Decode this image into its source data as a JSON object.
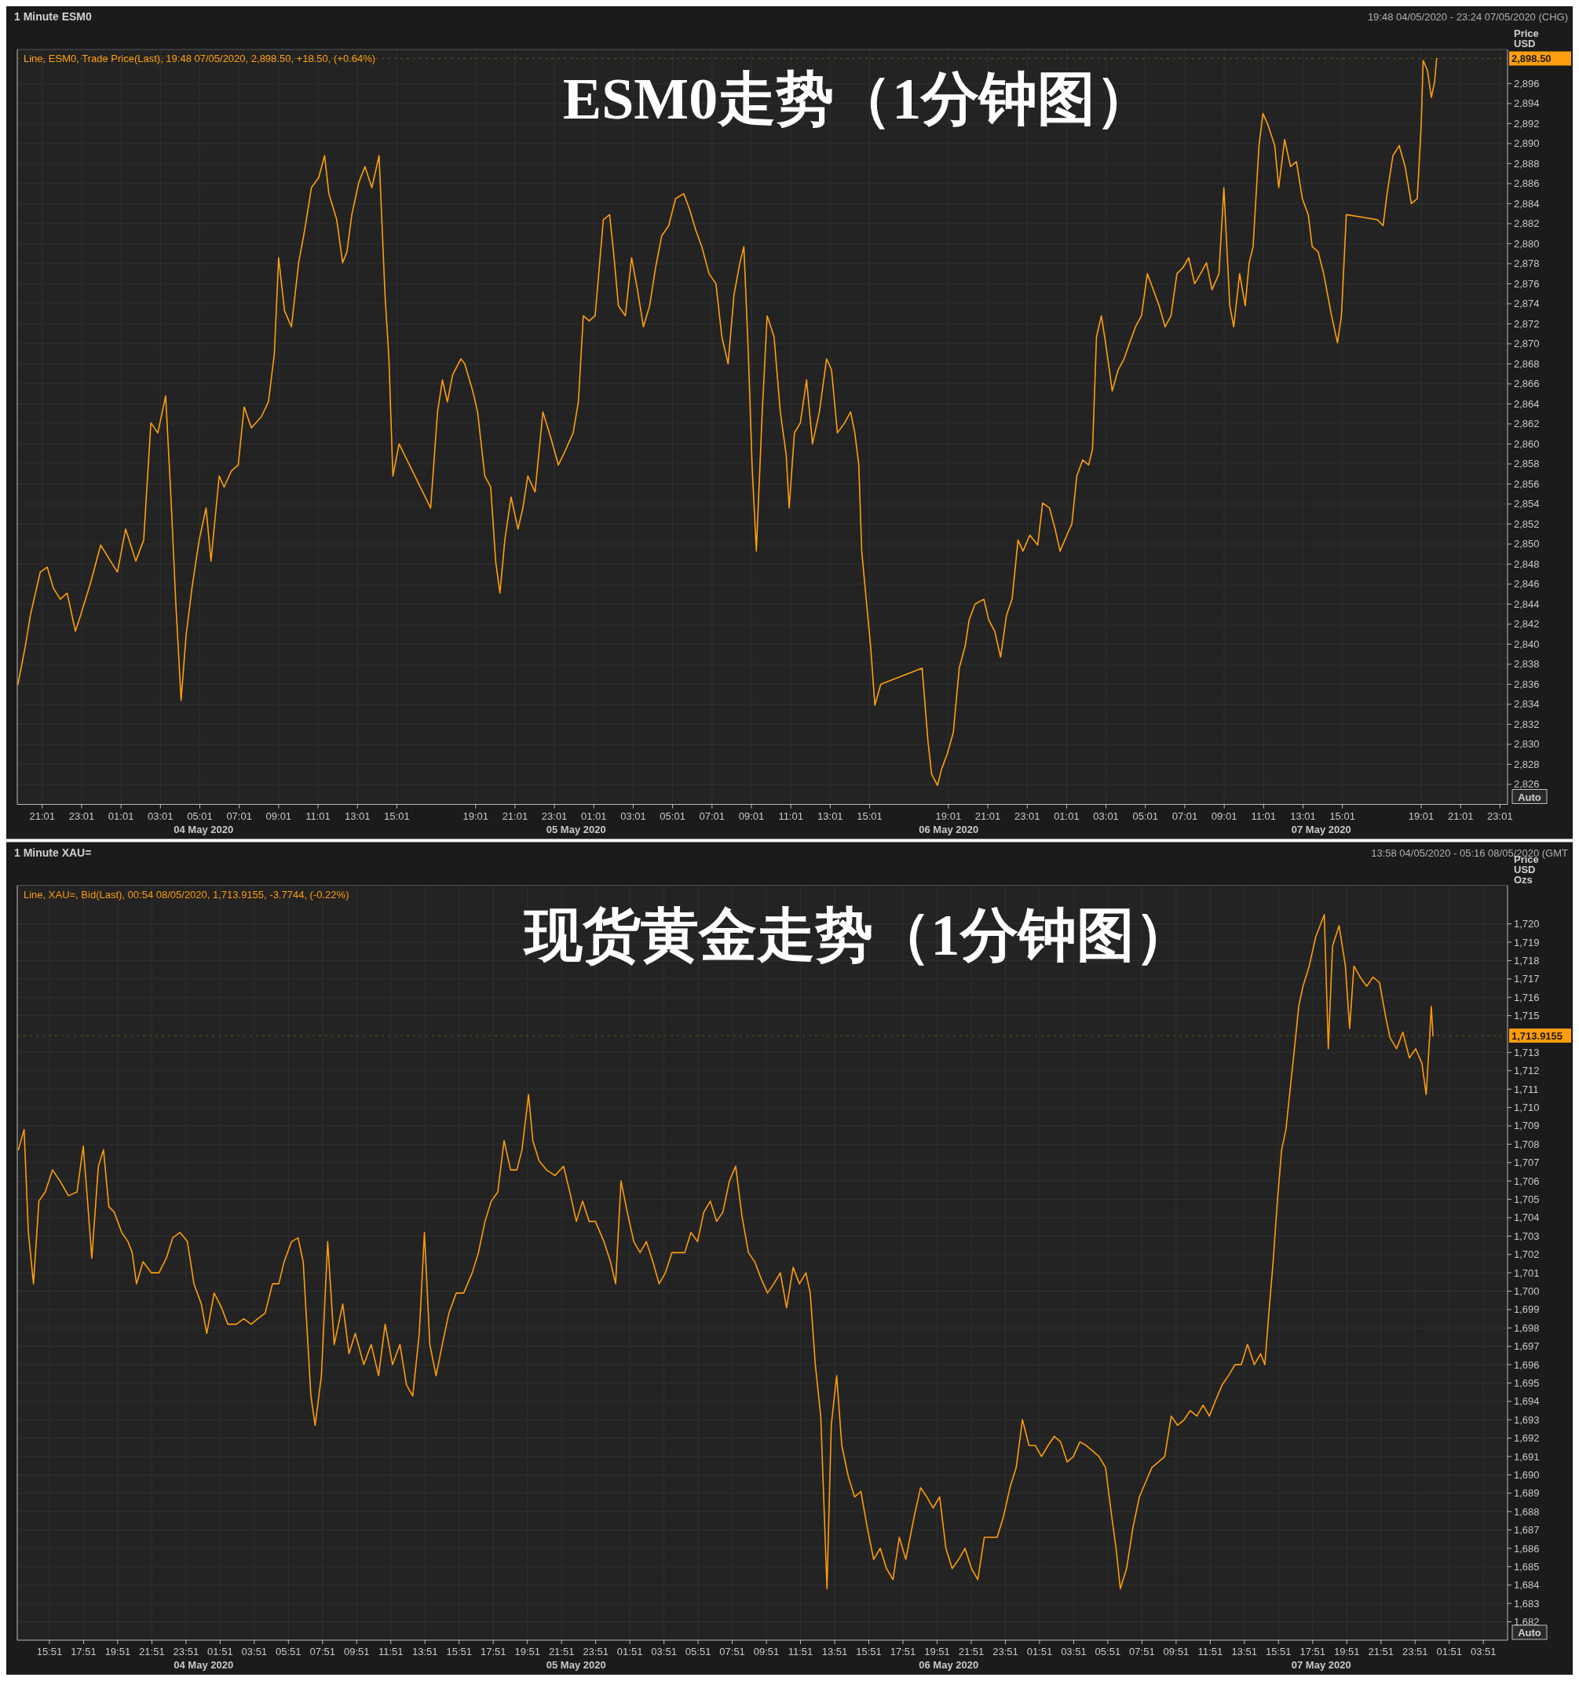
{
  "chart_data": [
    {
      "type": "line",
      "title": "ESM0走势（1分钟图）",
      "subtitle": "1 Minute ESM0",
      "ylabel": "Price USD",
      "annotations": [
        "Line, ESM0, Trade Price(Last), 19:48 07/05/2020, 2,898.50, +18.50, (+0.64%)",
        "19:48 04/05/2020 - 23:24 07/05/2020 (CHG)",
        "Auto",
        "04 May 2020",
        "05 May 2020",
        "06 May 2020",
        "07 May 2020"
      ],
      "series": [
        {
          "color": "#ff9f0f",
          "x": [
            "2020-05-04T19:47",
            "2020-05-04T20:09",
            "2020-05-04T20:25",
            "2020-05-04T20:55",
            "2020-05-04T21:16",
            "2020-05-04T21:35",
            "2020-05-04T21:56",
            "2020-05-04T22:17",
            "2020-05-04T22:42",
            "2020-05-04T22:58",
            "2020-05-04T23:28",
            "2020-05-04T23:59",
            "2020-05-05T00:29",
            "2020-05-05T00:50",
            "2020-05-05T01:15",
            "2020-05-05T01:46",
            "2020-05-05T02:10",
            "2020-05-05T02:32",
            "2020-05-05T02:53",
            "2020-05-05T03:17",
            "2020-05-05T03:33",
            "2020-05-05T03:48",
            "2020-05-05T04:04",
            "2020-05-05T04:19",
            "2020-05-05T04:37",
            "2020-05-05T04:59",
            "2020-05-05T05:20",
            "2020-05-05T05:35",
            "2020-05-05T06:00",
            "2020-05-05T06:15",
            "2020-05-05T06:37",
            "2020-05-05T06:58",
            "2020-05-05T07:16",
            "2020-05-05T07:38",
            "2020-05-05T08:08",
            "2020-05-05T08:30",
            "2020-05-05T08:48",
            "2020-05-05T09:01",
            "2020-05-05T09:19",
            "2020-05-05T09:40",
            "2020-05-05T10:02",
            "2020-05-05T10:20",
            "2020-05-05T10:41",
            "2020-05-05T11:03",
            "2020-05-05T11:21",
            "2020-05-05T11:34",
            "2020-05-05T11:58",
            "2020-05-05T12:16",
            "2020-05-05T12:29",
            "2020-05-05T12:44",
            "2020-05-05T13:05",
            "2020-05-05T13:24",
            "2020-05-05T13:45",
            "2020-05-05T14:07",
            "2020-05-05T14:25",
            "2020-05-05T14:37",
            "2020-05-05T14:49",
            "2020-05-05T15:08",
            "2020-05-05T16:44",
            "2020-05-05T17:05",
            "2020-05-05T17:20",
            "2020-05-05T17:35",
            "2020-05-05T17:51",
            "2020-05-05T18:16",
            "2020-05-05T18:28",
            "2020-05-05T18:52",
            "2020-05-05T19:07",
            "2020-05-05T19:29",
            "2020-05-05T19:47",
            "2020-05-05T20:02",
            "2020-05-05T20:15",
            "2020-05-05T20:30",
            "2020-05-05T20:49",
            "2020-05-05T21:10",
            "2020-05-05T21:25",
            "2020-05-05T21:40",
            "2020-05-05T22:02",
            "2020-05-05T22:26",
            "2020-05-05T22:51",
            "2020-05-05T23:13",
            "2020-05-05T23:28",
            "2020-05-05T23:58",
            "2020-05-06T00:14",
            "2020-05-06T00:29",
            "2020-05-06T00:47",
            "2020-05-06T01:05",
            "2020-05-06T01:30",
            "2020-05-06T01:49",
            "2020-05-06T02:01",
            "2020-05-06T02:16",
            "2020-05-06T02:37",
            "2020-05-06T02:56",
            "2020-05-06T03:14",
            "2020-05-06T03:32",
            "2020-05-06T03:51",
            "2020-05-06T04:09",
            "2020-05-06T04:28",
            "2020-05-06T04:49",
            "2020-05-06T05:10",
            "2020-05-06T05:35",
            "2020-05-06T05:53",
            "2020-05-06T06:12",
            "2020-05-06T06:30",
            "2020-05-06T06:52",
            "2020-05-06T07:13",
            "2020-05-06T07:31",
            "2020-05-06T07:50",
            "2020-05-06T08:08",
            "2020-05-06T08:26",
            "2020-05-06T08:38",
            "2020-05-06T08:51",
            "2020-05-06T09:03",
            "2020-05-06T09:16",
            "2020-05-06T09:34",
            "2020-05-06T09:49",
            "2020-05-06T10:10",
            "2020-05-06T10:29",
            "2020-05-06T10:47",
            "2020-05-06T10:56",
            "2020-05-06T11:12",
            "2020-05-06T11:30",
            "2020-05-06T11:49",
            "2020-05-06T12:07",
            "2020-05-06T12:28",
            "2020-05-06T12:50",
            "2020-05-06T13:05",
            "2020-05-06T13:23",
            "2020-05-06T13:45",
            "2020-05-06T14:03",
            "2020-05-06T14:16",
            "2020-05-06T14:28",
            "2020-05-06T14:37",
            "2020-05-06T14:52",
            "2020-05-06T15:04",
            "2020-05-06T15:17",
            "2020-05-06T15:35",
            "2020-05-06T17:41",
            "2020-05-06T17:59",
            "2020-05-06T18:10",
            "2020-05-06T18:28",
            "2020-05-06T18:40",
            "2020-05-06T18:58",
            "2020-05-06T19:16",
            "2020-05-06T19:34",
            "2020-05-06T19:52",
            "2020-05-06T20:04",
            "2020-05-06T20:22",
            "2020-05-06T20:49",
            "2020-05-06T21:04",
            "2020-05-06T21:22",
            "2020-05-06T21:40",
            "2020-05-06T21:58",
            "2020-05-06T22:15",
            "2020-05-06T22:33",
            "2020-05-06T22:48",
            "2020-05-06T23:09",
            "2020-05-06T23:33",
            "2020-05-06T23:48",
            "2020-05-07T00:09",
            "2020-05-07T00:26",
            "2020-05-07T00:41",
            "2020-05-07T01:02",
            "2020-05-07T01:17",
            "2020-05-07T01:32",
            "2020-05-07T01:50",
            "2020-05-07T02:08",
            "2020-05-07T02:20",
            "2020-05-07T02:32",
            "2020-05-07T02:47",
            "2020-05-07T03:02",
            "2020-05-07T03:20",
            "2020-05-07T03:38",
            "2020-05-07T03:56",
            "2020-05-07T04:13",
            "2020-05-07T04:31",
            "2020-05-07T04:49",
            "2020-05-07T05:07",
            "2020-05-07T05:25",
            "2020-05-07T05:43",
            "2020-05-07T06:01",
            "2020-05-07T06:19",
            "2020-05-07T06:37",
            "2020-05-07T06:55",
            "2020-05-07T07:13",
            "2020-05-07T07:31",
            "2020-05-07T07:49",
            "2020-05-07T08:07",
            "2020-05-07T08:24",
            "2020-05-07T08:45",
            "2020-05-07T09:00",
            "2020-05-07T09:18",
            "2020-05-07T09:30",
            "2020-05-07T09:48",
            "2020-05-07T10:05",
            "2020-05-07T10:17",
            "2020-05-07T10:29",
            "2020-05-07T10:47",
            "2020-05-07T10:59",
            "2020-05-07T11:14",
            "2020-05-07T11:35",
            "2020-05-07T11:47",
            "2020-05-07T12:05",
            "2020-05-07T12:23",
            "2020-05-07T12:41",
            "2020-05-07T12:59",
            "2020-05-07T13:17",
            "2020-05-07T13:29",
            "2020-05-07T13:47",
            "2020-05-07T14:04",
            "2020-05-07T14:16",
            "2020-05-07T14:28",
            "2020-05-07T14:46",
            "2020-05-07T14:58",
            "2020-05-07T15:13",
            "2020-05-07T16:47",
            "2020-05-07T17:05",
            "2020-05-07T17:17",
            "2020-05-07T17:35",
            "2020-05-07T17:54",
            "2020-05-07T18:12",
            "2020-05-07T18:31",
            "2020-05-07T18:49",
            "2020-05-07T19:01",
            "2020-05-07T19:07",
            "2020-05-07T19:20",
            "2020-05-07T19:32",
            "2020-05-07T19:42",
            "2020-05-07T19:48"
          ],
          "values": [
            2836.0,
            2839.7,
            2842.9,
            2847.2,
            2847.7,
            2845.6,
            2844.5,
            2845.1,
            2841.3,
            2842.9,
            2846.1,
            2849.9,
            2848.3,
            2847.2,
            2851.5,
            2848.3,
            2850.4,
            2862.1,
            2861.1,
            2864.8,
            2854.7,
            2844.0,
            2834.4,
            2840.8,
            2845.6,
            2850.4,
            2853.6,
            2848.3,
            2856.8,
            2855.7,
            2857.3,
            2857.9,
            2863.7,
            2861.6,
            2862.7,
            2864.2,
            2869.0,
            2878.6,
            2873.3,
            2871.7,
            2878.1,
            2881.3,
            2885.6,
            2886.6,
            2888.8,
            2885.0,
            2882.4,
            2878.1,
            2879.2,
            2882.9,
            2886.1,
            2887.7,
            2885.6,
            2888.8,
            2874.9,
            2868.5,
            2856.8,
            2860.0,
            2853.6,
            2863.2,
            2866.4,
            2864.2,
            2866.9,
            2868.5,
            2868.0,
            2865.3,
            2863.2,
            2856.8,
            2855.7,
            2848.3,
            2845.1,
            2850.4,
            2854.7,
            2851.5,
            2853.6,
            2856.8,
            2855.2,
            2863.2,
            2860.5,
            2857.9,
            2858.9,
            2861.1,
            2864.2,
            2872.8,
            2872.3,
            2872.8,
            2882.4,
            2882.9,
            2879.2,
            2873.8,
            2872.8,
            2878.6,
            2875.4,
            2871.7,
            2873.8,
            2877.6,
            2880.8,
            2881.8,
            2884.5,
            2885.0,
            2883.4,
            2881.3,
            2879.7,
            2877.0,
            2876.0,
            2870.7,
            2868.0,
            2874.9,
            2878.1,
            2879.7,
            2869.6,
            2857.9,
            2849.3,
            2863.2,
            2872.8,
            2870.7,
            2863.2,
            2858.9,
            2853.6,
            2861.1,
            2862.1,
            2866.4,
            2860.0,
            2863.2,
            2868.5,
            2867.4,
            2861.1,
            2862.1,
            2863.2,
            2861.1,
            2857.9,
            2849.3,
            2844.0,
            2839.8,
            2833.9,
            2836.0,
            2837.6,
            2830.2,
            2827.0,
            2825.9,
            2827.5,
            2829.1,
            2831.2,
            2837.6,
            2839.8,
            2842.4,
            2844.0,
            2844.5,
            2842.4,
            2841.3,
            2838.7,
            2842.9,
            2844.5,
            2850.4,
            2849.3,
            2850.9,
            2849.9,
            2854.1,
            2853.6,
            2851.5,
            2849.3,
            2850.9,
            2852.0,
            2856.8,
            2858.4,
            2857.9,
            2859.5,
            2870.7,
            2872.8,
            2869.6,
            2865.3,
            2867.4,
            2868.5,
            2870.1,
            2871.7,
            2872.8,
            2877.0,
            2875.4,
            2873.8,
            2871.7,
            2872.8,
            2877.0,
            2877.6,
            2878.6,
            2876.0,
            2877.0,
            2878.1,
            2875.4,
            2877.0,
            2885.6,
            2873.8,
            2871.7,
            2877.0,
            2873.8,
            2878.1,
            2879.7,
            2889.8,
            2893.0,
            2891.9,
            2889.8,
            2885.6,
            2890.4,
            2887.7,
            2888.2,
            2884.5,
            2882.9,
            2879.7,
            2879.2,
            2877.0,
            2874.9,
            2872.8,
            2870.1,
            2872.8,
            2882.9,
            2882.4,
            2881.8,
            2885.0,
            2888.8,
            2889.8,
            2887.7,
            2884.0,
            2884.5,
            2891.9,
            2898.3,
            2897.3,
            2894.6,
            2896.2,
            2898.5
          ]
        }
      ],
      "xlim": [
        "2020-05-04T19:45",
        "2020-05-07T23:24"
      ],
      "ylim": [
        2824,
        2899.4
      ],
      "xticks": [
        {
          "value": "2020-05-04T21:01",
          "label": "21:01"
        },
        {
          "value": "2020-05-04T23:01",
          "label": "23:01"
        },
        {
          "value": "2020-05-05T01:01",
          "label": "01:01"
        },
        {
          "value": "2020-05-05T03:01",
          "label": "03:01"
        },
        {
          "value": "2020-05-05T05:01",
          "label": "05:01"
        },
        {
          "value": "2020-05-05T07:01",
          "label": "07:01"
        },
        {
          "value": "2020-05-05T09:01",
          "label": "09:01"
        },
        {
          "value": "2020-05-05T11:01",
          "label": "11:01"
        },
        {
          "value": "2020-05-05T13:01",
          "label": "13:01"
        },
        {
          "value": "2020-05-05T15:01",
          "label": "15:01"
        },
        {
          "value": "2020-05-05T19:01",
          "label": "19:01"
        },
        {
          "value": "2020-05-05T21:01",
          "label": "21:01"
        },
        {
          "value": "2020-05-05T23:01",
          "label": "23:01"
        },
        {
          "value": "2020-05-06T01:01",
          "label": "01:01"
        },
        {
          "value": "2020-05-06T03:01",
          "label": "03:01"
        },
        {
          "value": "2020-05-06T05:01",
          "label": "05:01"
        },
        {
          "value": "2020-05-06T07:01",
          "label": "07:01"
        },
        {
          "value": "2020-05-06T09:01",
          "label": "09:01"
        },
        {
          "value": "2020-05-06T11:01",
          "label": "11:01"
        },
        {
          "value": "2020-05-06T13:01",
          "label": "13:01"
        },
        {
          "value": "2020-05-06T15:01",
          "label": "15:01"
        },
        {
          "value": "2020-05-06T19:01",
          "label": "19:01"
        },
        {
          "value": "2020-05-06T21:01",
          "label": "21:01"
        },
        {
          "value": "2020-05-06T23:01",
          "label": "23:01"
        },
        {
          "value": "2020-05-07T01:01",
          "label": "01:01"
        },
        {
          "value": "2020-05-07T03:01",
          "label": "03:01"
        },
        {
          "value": "2020-05-07T05:01",
          "label": "05:01"
        },
        {
          "value": "2020-05-07T07:01",
          "label": "07:01"
        },
        {
          "value": "2020-05-07T09:01",
          "label": "09:01"
        },
        {
          "value": "2020-05-07T11:01",
          "label": "11:01"
        },
        {
          "value": "2020-05-07T13:01",
          "label": "13:01"
        },
        {
          "value": "2020-05-07T15:01",
          "label": "15:01"
        },
        {
          "value": "2020-05-07T19:01",
          "label": "19:01"
        },
        {
          "value": "2020-05-07T21:01",
          "label": "21:01"
        },
        {
          "value": "2020-05-07T23:01",
          "label": "23:01"
        }
      ],
      "yticks": [
        {
          "value": 2826,
          "label": "2,826"
        },
        {
          "value": 2828,
          "label": "2,828"
        },
        {
          "value": 2830,
          "label": "2,830"
        },
        {
          "value": 2832,
          "label": "2,832"
        },
        {
          "value": 2834,
          "label": "2,834"
        },
        {
          "value": 2836,
          "label": "2,836"
        },
        {
          "value": 2838,
          "label": "2,838"
        },
        {
          "value": 2840,
          "label": "2,840"
        },
        {
          "value": 2842,
          "label": "2,842"
        },
        {
          "value": 2844,
          "label": "2,844"
        },
        {
          "value": 2846,
          "label": "2,846"
        },
        {
          "value": 2848,
          "label": "2,848"
        },
        {
          "value": 2850,
          "label": "2,850"
        },
        {
          "value": 2852,
          "label": "2,852"
        },
        {
          "value": 2854,
          "label": "2,854"
        },
        {
          "value": 2856,
          "label": "2,856"
        },
        {
          "value": 2858,
          "label": "2,858"
        },
        {
          "value": 2860,
          "label": "2,860"
        },
        {
          "value": 2862,
          "label": "2,862"
        },
        {
          "value": 2864,
          "label": "2,864"
        },
        {
          "value": 2866,
          "label": "2,866"
        },
        {
          "value": 2868,
          "label": "2,868"
        },
        {
          "value": 2870,
          "label": "2,870"
        },
        {
          "value": 2872,
          "label": "2,872"
        },
        {
          "value": 2874,
          "label": "2,874"
        },
        {
          "value": 2876,
          "label": "2,876"
        },
        {
          "value": 2878,
          "label": "2,878"
        },
        {
          "value": 2880,
          "label": "2,880"
        },
        {
          "value": 2882,
          "label": "2,882"
        },
        {
          "value": 2884,
          "label": "2,884"
        },
        {
          "value": 2886,
          "label": "2,886"
        },
        {
          "value": 2888,
          "label": "2,888"
        },
        {
          "value": 2890,
          "label": "2,890"
        },
        {
          "value": 2892,
          "label": "2,892"
        },
        {
          "value": 2894,
          "label": "2,894"
        },
        {
          "value": 2896,
          "label": "2,896"
        }
      ],
      "grid": true,
      "ref_lines": [
        {
          "axis": "y",
          "value": 2898.5,
          "label": "2,898.50",
          "color": "#ff9f0f"
        }
      ]
    },
    {
      "type": "line",
      "title": "现货黄金走势（1分钟图）",
      "subtitle": "1 Minute XAU=",
      "ylabel": "Price USD Ozs",
      "annotations": [
        "Line, XAU=, Bid(Last), 00:54 08/05/2020, 1,713.9155, -3.7744, (-0.22%)",
        "13:58 04/05/2020 - 05:16 08/05/2020 (GMT",
        "Auto",
        "04 May 2020",
        "05 May 2020",
        "06 May 2020",
        "07 May 2020"
      ],
      "series": [
        {
          "color": "#ff9c0c",
          "x": [
            "2020-05-04T14:02",
            "2020-05-04T14:22",
            "2020-05-04T14:37",
            "2020-05-04T14:55",
            "2020-05-04T15:14",
            "2020-05-04T15:36",
            "2020-05-04T16:02",
            "2020-05-04T16:28",
            "2020-05-04T16:58",
            "2020-05-04T17:28",
            "2020-05-04T17:50",
            "2020-05-04T18:05",
            "2020-05-04T18:20",
            "2020-05-04T18:43",
            "2020-05-04T19:01",
            "2020-05-04T19:20",
            "2020-05-04T19:39",
            "2020-05-04T20:05",
            "2020-05-04T20:27",
            "2020-05-04T20:42",
            "2020-05-04T20:57",
            "2020-05-04T21:20",
            "2020-05-04T21:49",
            "2020-05-04T22:16",
            "2020-05-04T22:42",
            "2020-05-04T23:04",
            "2020-05-04T23:30",
            "2020-05-04T23:56",
            "2020-05-05T00:19",
            "2020-05-05T00:45",
            "2020-05-05T01:04",
            "2020-05-05T01:30",
            "2020-05-05T01:56",
            "2020-05-05T02:18",
            "2020-05-05T02:48",
            "2020-05-05T03:14",
            "2020-05-05T03:40",
            "2020-05-05T04:03",
            "2020-05-05T04:29",
            "2020-05-05T04:55",
            "2020-05-05T05:17",
            "2020-05-05T05:36",
            "2020-05-05T06:02",
            "2020-05-05T06:25",
            "2020-05-05T06:43",
            "2020-05-05T07:10",
            "2020-05-05T07:25",
            "2020-05-05T07:47",
            "2020-05-05T08:09",
            "2020-05-05T08:32",
            "2020-05-05T09:02",
            "2020-05-05T09:24",
            "2020-05-05T09:46",
            "2020-05-05T10:16",
            "2020-05-05T10:42",
            "2020-05-05T11:08",
            "2020-05-05T11:31",
            "2020-05-05T11:57",
            "2020-05-05T12:23",
            "2020-05-05T12:46",
            "2020-05-05T13:08",
            "2020-05-05T13:31",
            "2020-05-05T13:49",
            "2020-05-05T14:08",
            "2020-05-05T14:30",
            "2020-05-05T14:52",
            "2020-05-05T15:15",
            "2020-05-05T15:41",
            "2020-05-05T16:07",
            "2020-05-05T16:37",
            "2020-05-05T16:59",
            "2020-05-05T17:22",
            "2020-05-05T17:44",
            "2020-05-05T18:07",
            "2020-05-05T18:29",
            "2020-05-05T18:52",
            "2020-05-05T19:14",
            "2020-05-05T19:32",
            "2020-05-05T19:55",
            "2020-05-05T20:10",
            "2020-05-05T20:32",
            "2020-05-05T20:58",
            "2020-05-05T21:28",
            "2020-05-05T21:58",
            "2020-05-05T22:20",
            "2020-05-05T22:43",
            "2020-05-05T23:05",
            "2020-05-05T23:28",
            "2020-05-05T23:50",
            "2020-05-06T00:20",
            "2020-05-06T00:43",
            "2020-05-06T01:01",
            "2020-05-06T01:20",
            "2020-05-06T01:42",
            "2020-05-06T02:05",
            "2020-05-06T02:27",
            "2020-05-06T02:49",
            "2020-05-06T03:12",
            "2020-05-06T03:34",
            "2020-05-06T03:56",
            "2020-05-06T04:19",
            "2020-05-06T04:41",
            "2020-05-06T05:04",
            "2020-05-06T05:26",
            "2020-05-06T05:49",
            "2020-05-06T06:11",
            "2020-05-06T06:34",
            "2020-05-06T06:56",
            "2020-05-06T07:18",
            "2020-05-06T07:41",
            "2020-05-06T08:03",
            "2020-05-06T08:25",
            "2020-05-06T08:48",
            "2020-05-06T09:10",
            "2020-05-06T09:32",
            "2020-05-06T09:55",
            "2020-05-06T10:17",
            "2020-05-06T10:40",
            "2020-05-06T11:02",
            "2020-05-06T11:25",
            "2020-05-06T11:47",
            "2020-05-06T12:10",
            "2020-05-06T12:25",
            "2020-05-06T12:43",
            "2020-05-06T13:02",
            "2020-05-06T13:24",
            "2020-05-06T13:39",
            "2020-05-06T13:58",
            "2020-05-06T14:16",
            "2020-05-06T14:39",
            "2020-05-06T15:01",
            "2020-05-06T15:23",
            "2020-05-06T15:46",
            "2020-05-06T16:08",
            "2020-05-06T16:31",
            "2020-05-06T16:53",
            "2020-05-06T17:16",
            "2020-05-06T17:38",
            "2020-05-06T18:01",
            "2020-05-06T18:30",
            "2020-05-06T18:53",
            "2020-05-06T19:15",
            "2020-05-06T19:37",
            "2020-05-06T20:00",
            "2020-05-06T20:22",
            "2020-05-06T20:44",
            "2020-05-06T21:07",
            "2020-05-06T21:29",
            "2020-05-06T21:52",
            "2020-05-06T22:14",
            "2020-05-06T22:37",
            "2020-05-06T22:59",
            "2020-05-06T23:22",
            "2020-05-06T23:44",
            "2020-05-07T00:07",
            "2020-05-07T00:29",
            "2020-05-07T00:51",
            "2020-05-07T01:14",
            "2020-05-07T01:36",
            "2020-05-07T01:58",
            "2020-05-07T02:21",
            "2020-05-07T02:43",
            "2020-05-07T03:05",
            "2020-05-07T03:28",
            "2020-05-07T03:50",
            "2020-05-07T04:13",
            "2020-05-07T04:35",
            "2020-05-07T04:58",
            "2020-05-07T05:20",
            "2020-05-07T05:43",
            "2020-05-07T06:05",
            "2020-05-07T06:20",
            "2020-05-07T06:35",
            "2020-05-07T06:57",
            "2020-05-07T07:19",
            "2020-05-07T07:42",
            "2020-05-07T08:04",
            "2020-05-07T08:26",
            "2020-05-07T08:49",
            "2020-05-07T09:11",
            "2020-05-07T09:34",
            "2020-05-07T09:56",
            "2020-05-07T10:19",
            "2020-05-07T10:41",
            "2020-05-07T11:04",
            "2020-05-07T11:26",
            "2020-05-07T11:48",
            "2020-05-07T12:11",
            "2020-05-07T12:33",
            "2020-05-07T12:55",
            "2020-05-07T13:18",
            "2020-05-07T13:40",
            "2020-05-07T14:02",
            "2020-05-07T14:26",
            "2020-05-07T14:48",
            "2020-05-07T15:03",
            "2020-05-07T15:17",
            "2020-05-07T15:32",
            "2020-05-07T15:47",
            "2020-05-07T16:02",
            "2020-05-07T16:17",
            "2020-05-07T16:32",
            "2020-05-07T16:47",
            "2020-05-07T17:02",
            "2020-05-07T17:17",
            "2020-05-07T17:39",
            "2020-05-07T18:02",
            "2020-05-07T18:17",
            "2020-05-07T18:32",
            "2020-05-07T18:46",
            "2020-05-07T19:01",
            "2020-05-07T19:24",
            "2020-05-07T19:46",
            "2020-05-07T20:01",
            "2020-05-07T20:16",
            "2020-05-07T20:38",
            "2020-05-07T21:01",
            "2020-05-07T21:23",
            "2020-05-07T21:46",
            "2020-05-07T22:08",
            "2020-05-07T22:23",
            "2020-05-07T22:46",
            "2020-05-07T23:08",
            "2020-05-07T23:31",
            "2020-05-07T23:53",
            "2020-05-08T00:15",
            "2020-05-08T00:30",
            "2020-05-08T00:42",
            "2020-05-08T00:48",
            "2020-05-08T00:54"
          ],
          "values": [
            1707.7,
            1708.8,
            1703.2,
            1700.4,
            1704.9,
            1705.4,
            1706.6,
            1706.0,
            1705.2,
            1705.4,
            1707.9,
            1704.9,
            1701.8,
            1706.8,
            1707.7,
            1704.6,
            1704.3,
            1703.2,
            1702.7,
            1702.1,
            1700.4,
            1701.6,
            1701.0,
            1701.0,
            1701.8,
            1702.9,
            1703.2,
            1702.7,
            1700.4,
            1699.3,
            1697.7,
            1699.9,
            1699.1,
            1698.2,
            1698.2,
            1698.5,
            1698.2,
            1698.5,
            1698.8,
            1700.4,
            1700.4,
            1701.6,
            1702.7,
            1702.9,
            1701.6,
            1694.3,
            1692.7,
            1695.4,
            1702.7,
            1697.1,
            1699.3,
            1696.6,
            1697.7,
            1696.0,
            1697.1,
            1695.4,
            1698.2,
            1696.0,
            1697.1,
            1694.9,
            1694.3,
            1697.7,
            1703.2,
            1697.1,
            1695.4,
            1697.1,
            1698.8,
            1699.9,
            1699.9,
            1701.0,
            1702.1,
            1703.8,
            1704.9,
            1705.4,
            1708.2,
            1706.6,
            1706.6,
            1707.7,
            1710.7,
            1708.2,
            1707.1,
            1706.6,
            1706.3,
            1706.8,
            1705.4,
            1703.8,
            1704.9,
            1703.8,
            1703.8,
            1702.7,
            1701.6,
            1700.4,
            1706.0,
            1704.3,
            1702.7,
            1702.1,
            1702.7,
            1701.6,
            1700.4,
            1701.0,
            1702.1,
            1702.1,
            1702.1,
            1703.2,
            1702.7,
            1704.3,
            1704.9,
            1703.8,
            1704.3,
            1706.0,
            1706.8,
            1704.1,
            1702.1,
            1701.6,
            1700.7,
            1699.9,
            1700.4,
            1701.0,
            1699.1,
            1701.3,
            1700.4,
            1701.0,
            1699.9,
            1696.0,
            1693.2,
            1683.8,
            1692.7,
            1695.4,
            1691.6,
            1689.9,
            1688.8,
            1689.1,
            1687.1,
            1685.4,
            1686.0,
            1684.9,
            1684.3,
            1686.6,
            1685.4,
            1687.7,
            1689.3,
            1688.8,
            1688.2,
            1688.8,
            1686.0,
            1684.9,
            1685.4,
            1686.0,
            1684.9,
            1684.3,
            1686.6,
            1686.6,
            1686.6,
            1687.7,
            1689.3,
            1690.4,
            1693.0,
            1691.6,
            1691.6,
            1691.0,
            1691.6,
            1692.1,
            1691.8,
            1690.7,
            1691.0,
            1691.8,
            1691.6,
            1691.3,
            1691.0,
            1690.4,
            1687.7,
            1686.0,
            1683.8,
            1684.9,
            1687.1,
            1688.8,
            1689.6,
            1690.4,
            1690.7,
            1691.0,
            1693.2,
            1692.7,
            1693.0,
            1693.5,
            1693.2,
            1693.8,
            1693.2,
            1694.1,
            1694.9,
            1695.4,
            1696.0,
            1696.0,
            1697.1,
            1696.0,
            1696.6,
            1696.0,
            1698.8,
            1701.6,
            1704.9,
            1707.7,
            1708.8,
            1711.0,
            1713.2,
            1715.5,
            1716.6,
            1717.7,
            1719.3,
            1719.9,
            1720.5,
            1713.2,
            1718.8,
            1719.9,
            1717.7,
            1714.3,
            1717.7,
            1717.1,
            1716.6,
            1717.1,
            1716.8,
            1714.9,
            1713.8,
            1713.2,
            1714.1,
            1712.7,
            1713.2,
            1712.4,
            1710.7,
            1713.8,
            1715.5,
            1713.9
          ]
        }
      ],
      "xlim": [
        "2020-05-04T13:58",
        "2020-05-08T05:16"
      ],
      "ylim": [
        1681,
        1722.1
      ],
      "xticks": [
        {
          "value": "2020-05-04T15:51",
          "label": "15:51"
        },
        {
          "value": "2020-05-04T17:51",
          "label": "17:51"
        },
        {
          "value": "2020-05-04T19:51",
          "label": "19:51"
        },
        {
          "value": "2020-05-04T21:51",
          "label": "21:51"
        },
        {
          "value": "2020-05-04T23:51",
          "label": "23:51"
        },
        {
          "value": "2020-05-05T01:51",
          "label": "01:51"
        },
        {
          "value": "2020-05-05T03:51",
          "label": "03:51"
        },
        {
          "value": "2020-05-05T05:51",
          "label": "05:51"
        },
        {
          "value": "2020-05-05T07:51",
          "label": "07:51"
        },
        {
          "value": "2020-05-05T09:51",
          "label": "09:51"
        },
        {
          "value": "2020-05-05T11:51",
          "label": "11:51"
        },
        {
          "value": "2020-05-05T13:51",
          "label": "13:51"
        },
        {
          "value": "2020-05-05T15:51",
          "label": "15:51"
        },
        {
          "value": "2020-05-05T17:51",
          "label": "17:51"
        },
        {
          "value": "2020-05-05T19:51",
          "label": "19:51"
        },
        {
          "value": "2020-05-05T21:51",
          "label": "21:51"
        },
        {
          "value": "2020-05-05T23:51",
          "label": "23:51"
        },
        {
          "value": "2020-05-06T01:51",
          "label": "01:51"
        },
        {
          "value": "2020-05-06T03:51",
          "label": "03:51"
        },
        {
          "value": "2020-05-06T05:51",
          "label": "05:51"
        },
        {
          "value": "2020-05-06T07:51",
          "label": "07:51"
        },
        {
          "value": "2020-05-06T09:51",
          "label": "09:51"
        },
        {
          "value": "2020-05-06T11:51",
          "label": "11:51"
        },
        {
          "value": "2020-05-06T13:51",
          "label": "13:51"
        },
        {
          "value": "2020-05-06T15:51",
          "label": "15:51"
        },
        {
          "value": "2020-05-06T17:51",
          "label": "17:51"
        },
        {
          "value": "2020-05-06T19:51",
          "label": "19:51"
        },
        {
          "value": "2020-05-06T21:51",
          "label": "21:51"
        },
        {
          "value": "2020-05-06T23:51",
          "label": "23:51"
        },
        {
          "value": "2020-05-07T01:51",
          "label": "01:51"
        },
        {
          "value": "2020-05-07T03:51",
          "label": "03:51"
        },
        {
          "value": "2020-05-07T05:51",
          "label": "05:51"
        },
        {
          "value": "2020-05-07T07:51",
          "label": "07:51"
        },
        {
          "value": "2020-05-07T09:51",
          "label": "09:51"
        },
        {
          "value": "2020-05-07T11:51",
          "label": "11:51"
        },
        {
          "value": "2020-05-07T13:51",
          "label": "13:51"
        },
        {
          "value": "2020-05-07T15:51",
          "label": "15:51"
        },
        {
          "value": "2020-05-07T17:51",
          "label": "17:51"
        },
        {
          "value": "2020-05-07T19:51",
          "label": "19:51"
        },
        {
          "value": "2020-05-07T21:51",
          "label": "21:51"
        },
        {
          "value": "2020-05-07T23:51",
          "label": "23:51"
        },
        {
          "value": "2020-05-08T01:51",
          "label": "01:51"
        },
        {
          "value": "2020-05-08T03:51",
          "label": "03:51"
        }
      ],
      "yticks": [
        {
          "value": 1682,
          "label": "1,682"
        },
        {
          "value": 1683,
          "label": "1,683"
        },
        {
          "value": 1684,
          "label": "1,684"
        },
        {
          "value": 1685,
          "label": "1,685"
        },
        {
          "value": 1686,
          "label": "1,686"
        },
        {
          "value": 1687,
          "label": "1,687"
        },
        {
          "value": 1688,
          "label": "1,688"
        },
        {
          "value": 1689,
          "label": "1,689"
        },
        {
          "value": 1690,
          "label": "1,690"
        },
        {
          "value": 1691,
          "label": "1,691"
        },
        {
          "value": 1692,
          "label": "1,692"
        },
        {
          "value": 1693,
          "label": "1,693"
        },
        {
          "value": 1694,
          "label": "1,694"
        },
        {
          "value": 1695,
          "label": "1,695"
        },
        {
          "value": 1696,
          "label": "1,696"
        },
        {
          "value": 1697,
          "label": "1,697"
        },
        {
          "value": 1698,
          "label": "1,698"
        },
        {
          "value": 1699,
          "label": "1,699"
        },
        {
          "value": 1700,
          "label": "1,700"
        },
        {
          "value": 1701,
          "label": "1,701"
        },
        {
          "value": 1702,
          "label": "1,702"
        },
        {
          "value": 1703,
          "label": "1,703"
        },
        {
          "value": 1704,
          "label": "1,704"
        },
        {
          "value": 1705,
          "label": "1,705"
        },
        {
          "value": 1706,
          "label": "1,706"
        },
        {
          "value": 1707,
          "label": "1,707"
        },
        {
          "value": 1708,
          "label": "1,708"
        },
        {
          "value": 1709,
          "label": "1,709"
        },
        {
          "value": 1710,
          "label": "1,710"
        },
        {
          "value": 1711,
          "label": "1,711"
        },
        {
          "value": 1712,
          "label": "1,712"
        },
        {
          "value": 1713,
          "label": "1,713"
        },
        {
          "value": 1715,
          "label": "1,715"
        },
        {
          "value": 1716,
          "label": "1,716"
        },
        {
          "value": 1717,
          "label": "1,717"
        },
        {
          "value": 1718,
          "label": "1,718"
        },
        {
          "value": 1719,
          "label": "1,719"
        },
        {
          "value": 1720,
          "label": "1,720"
        }
      ],
      "grid": true,
      "ref_lines": [
        {
          "axis": "y",
          "value": 1713.9155,
          "label": "1,713.9155",
          "color": "#ff9c0c"
        }
      ]
    }
  ]
}
